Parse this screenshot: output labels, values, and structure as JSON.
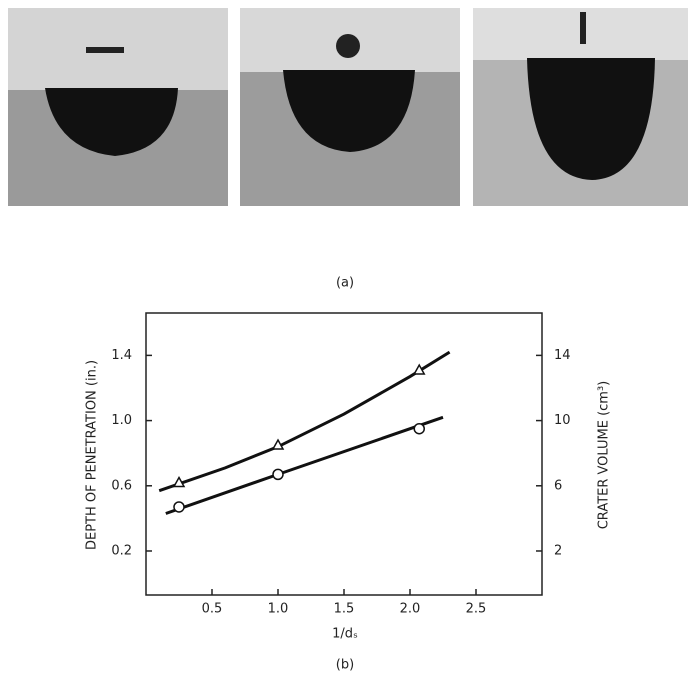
{
  "panel_a_label": "(a)",
  "chart_data": {
    "type": "line",
    "x_label": "1/dₛ",
    "y_label": "DEPTH OF PENETRATION (in.)",
    "y2_label": "CRATER VOLUME (cm³)",
    "panel_label": "(b)",
    "xlim": [
      0,
      3
    ],
    "ylim": [
      -0.07,
      1.66
    ],
    "y2lim": [
      -0.7,
      16.6
    ],
    "xticks": [
      0.5,
      {
        "value": 1,
        "label": "1.0"
      },
      1.5,
      {
        "value": 2,
        "label": "2.0"
      },
      2.5
    ],
    "yticks": [
      0.2,
      0.6,
      {
        "value": 1,
        "label": "1.0"
      },
      1.4
    ],
    "y2ticks": [
      2,
      6,
      10,
      14
    ],
    "color": "#111",
    "series": [
      {
        "marker": "triangle",
        "x": [
          0.25,
          1.0,
          2.07
        ],
        "values": [
          0.62,
          0.85,
          1.31
        ],
        "fit_x": [
          0.1,
          0.6,
          1.0,
          1.5,
          2.0,
          2.3
        ],
        "fit_values": [
          0.57,
          0.71,
          0.84,
          1.04,
          1.27,
          1.42
        ]
      },
      {
        "marker": "circle",
        "x": [
          0.25,
          1.0,
          2.07
        ],
        "values": [
          0.47,
          0.67,
          0.95
        ],
        "fit_x": [
          0.15,
          1.0,
          2.25
        ],
        "fit_values": [
          0.43,
          0.67,
          1.02
        ]
      }
    ]
  }
}
